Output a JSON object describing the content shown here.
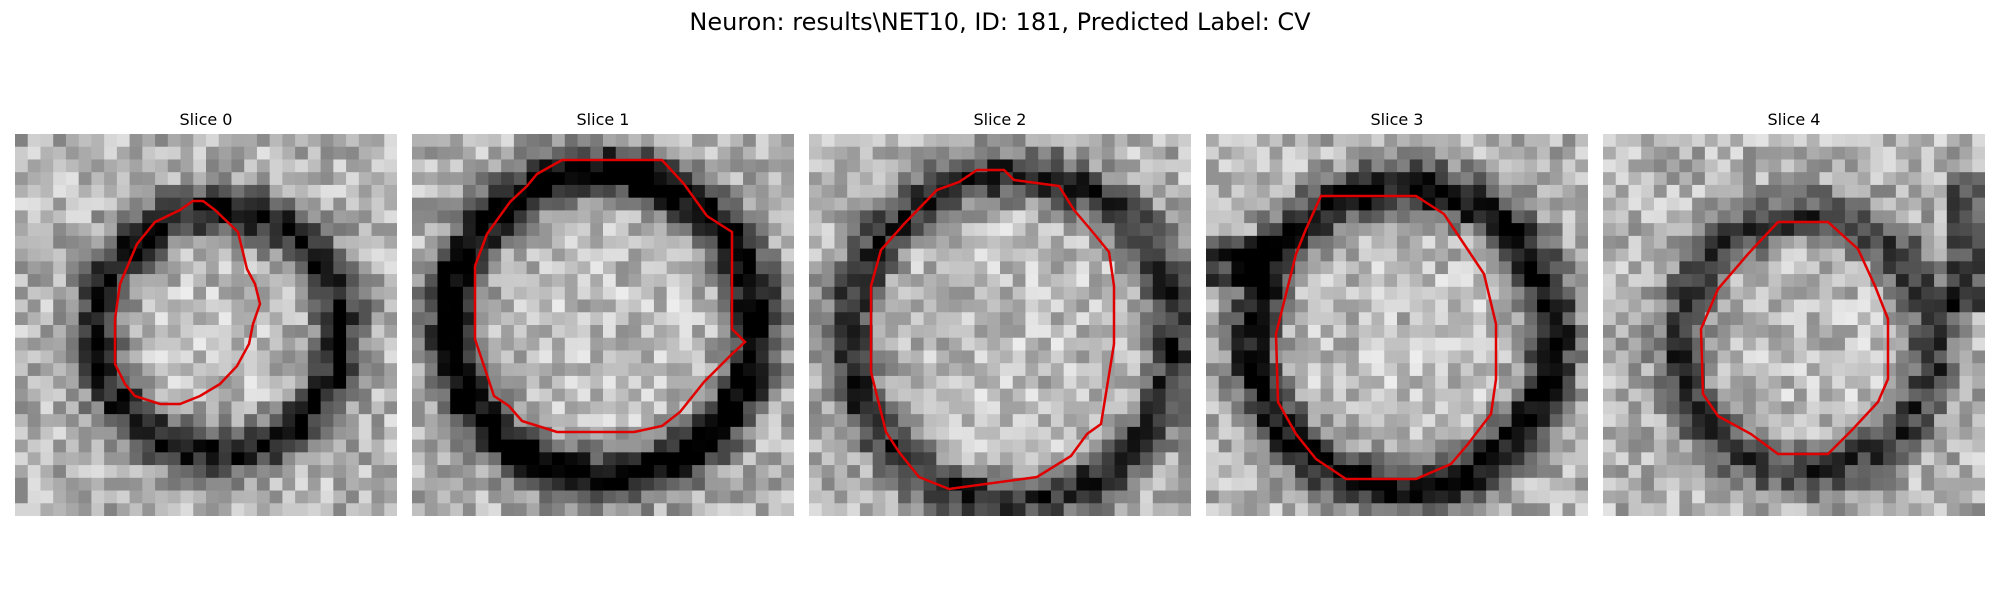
{
  "figure": {
    "title": "Neuron: results\\NET10, ID: 181, Predicted Label: CV",
    "contour_color": "#e00000",
    "colormap": "grayscale"
  },
  "panels": [
    {
      "label": "Slice 0"
    },
    {
      "label": "Slice 1"
    },
    {
      "label": "Slice 2"
    },
    {
      "label": "Slice 3"
    },
    {
      "label": "Slice 4"
    }
  ]
}
